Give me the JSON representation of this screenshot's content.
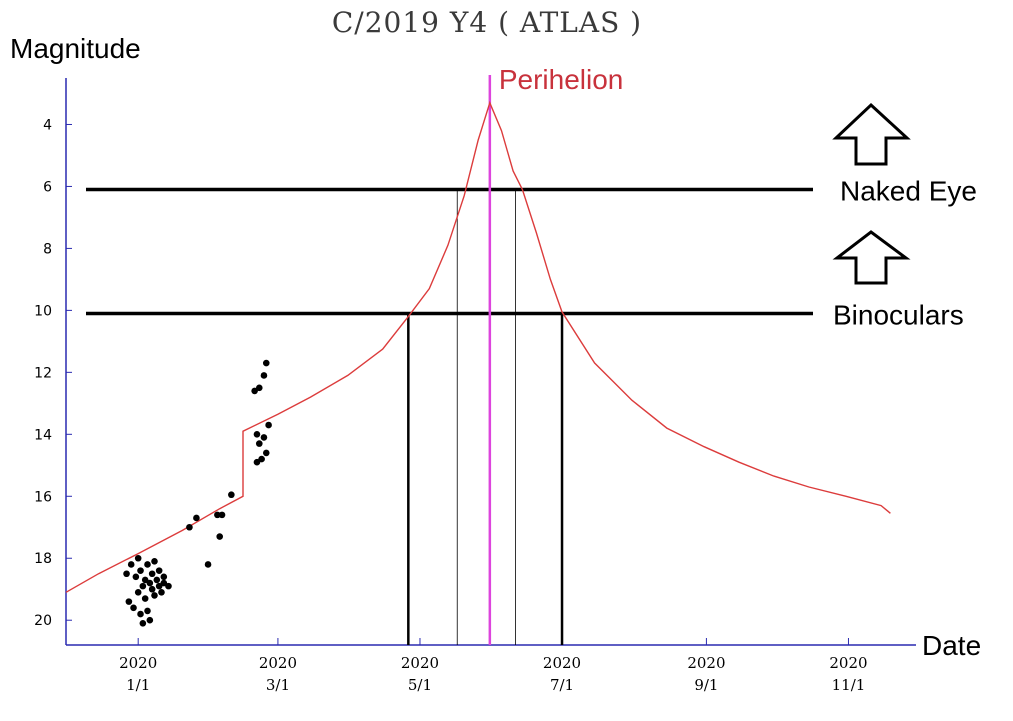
{
  "chart_data": {
    "type": "scatter",
    "title": "C/2019 Y4 ( ATLAS )",
    "ylabel": "Magnitude",
    "xlabel": "Date",
    "y_axis_inverted": true,
    "ylim": [
      20.8,
      2.5
    ],
    "xlim": [
      "2019-12-01",
      "2020-11-30"
    ],
    "y_ticks": [
      4,
      6,
      8,
      10,
      12,
      14,
      16,
      18,
      20
    ],
    "x_ticks": [
      {
        "date": "2020-01-01",
        "year": "2020",
        "label": "1/1"
      },
      {
        "date": "2020-03-01",
        "year": "2020",
        "label": "3/1"
      },
      {
        "date": "2020-05-01",
        "year": "2020",
        "label": "5/1"
      },
      {
        "date": "2020-07-01",
        "year": "2020",
        "label": "7/1"
      },
      {
        "date": "2020-09-01",
        "year": "2020",
        "label": "9/1"
      },
      {
        "date": "2020-11-01",
        "year": "2020",
        "label": "11/1"
      }
    ],
    "colors": {
      "prediction": "#dc3c3c",
      "perihelion": "#dd44dd",
      "observations": "#000000"
    },
    "prediction_curve": [
      [
        "2019-12-01",
        19.1
      ],
      [
        "2019-12-15",
        18.5
      ],
      [
        "2020-01-01",
        17.85
      ],
      [
        "2020-01-20",
        17.1
      ],
      [
        "2020-02-05",
        16.4
      ],
      [
        "2020-02-15",
        16.0
      ],
      [
        "2020-02-15",
        13.9
      ],
      [
        "2020-03-01",
        13.35
      ],
      [
        "2020-03-15",
        12.8
      ],
      [
        "2020-03-31",
        12.1
      ],
      [
        "2020-04-15",
        11.25
      ],
      [
        "2020-04-26",
        10.2
      ],
      [
        "2020-05-05",
        9.3
      ],
      [
        "2020-05-13",
        7.9
      ],
      [
        "2020-05-20",
        6.3
      ],
      [
        "2020-05-26",
        4.5
      ],
      [
        "2020-05-31",
        3.3
      ],
      [
        "2020-06-05",
        4.2
      ],
      [
        "2020-06-10",
        5.5
      ],
      [
        "2020-06-14",
        6.1
      ],
      [
        "2020-06-20",
        7.5
      ],
      [
        "2020-06-26",
        9.0
      ],
      [
        "2020-07-01",
        10.05
      ],
      [
        "2020-07-15",
        11.7
      ],
      [
        "2020-07-31",
        12.9
      ],
      [
        "2020-08-15",
        13.8
      ],
      [
        "2020-08-31",
        14.4
      ],
      [
        "2020-09-15",
        14.9
      ],
      [
        "2020-09-30",
        15.35
      ],
      [
        "2020-10-15",
        15.7
      ],
      [
        "2020-10-31",
        16.0
      ],
      [
        "2020-11-15",
        16.3
      ],
      [
        "2020-11-19",
        16.55
      ]
    ],
    "observations": [
      [
        "2019-12-27",
        18.5
      ],
      [
        "2019-12-28",
        19.4
      ],
      [
        "2019-12-29",
        18.2
      ],
      [
        "2019-12-30",
        19.6
      ],
      [
        "2019-12-31",
        18.6
      ],
      [
        "2020-01-01",
        18.0
      ],
      [
        "2020-01-01",
        19.1
      ],
      [
        "2020-01-02",
        18.4
      ],
      [
        "2020-01-02",
        19.8
      ],
      [
        "2020-01-03",
        18.9
      ],
      [
        "2020-01-03",
        20.1
      ],
      [
        "2020-01-04",
        18.7
      ],
      [
        "2020-01-04",
        19.3
      ],
      [
        "2020-01-05",
        18.2
      ],
      [
        "2020-01-05",
        19.7
      ],
      [
        "2020-01-06",
        18.8
      ],
      [
        "2020-01-06",
        20.0
      ],
      [
        "2020-01-07",
        18.5
      ],
      [
        "2020-01-07",
        19.0
      ],
      [
        "2020-01-08",
        18.1
      ],
      [
        "2020-01-08",
        19.2
      ],
      [
        "2020-01-09",
        18.7
      ],
      [
        "2020-01-10",
        18.9
      ],
      [
        "2020-01-10",
        18.4
      ],
      [
        "2020-01-11",
        19.1
      ],
      [
        "2020-01-12",
        18.6
      ],
      [
        "2020-01-12",
        18.8
      ],
      [
        "2020-01-14",
        18.9
      ],
      [
        "2020-01-23",
        17.0
      ],
      [
        "2020-01-26",
        16.7
      ],
      [
        "2020-01-31",
        18.2
      ],
      [
        "2020-02-04",
        16.6
      ],
      [
        "2020-02-05",
        17.3
      ],
      [
        "2020-02-06",
        16.6
      ],
      [
        "2020-02-10",
        15.95
      ],
      [
        "2020-02-20",
        12.6
      ],
      [
        "2020-02-21",
        14.0
      ],
      [
        "2020-02-21",
        14.9
      ],
      [
        "2020-02-22",
        12.5
      ],
      [
        "2020-02-22",
        14.3
      ],
      [
        "2020-02-23",
        14.8
      ],
      [
        "2020-02-24",
        12.1
      ],
      [
        "2020-02-24",
        14.1
      ],
      [
        "2020-02-25",
        14.6
      ],
      [
        "2020-02-25",
        11.7
      ],
      [
        "2020-02-26",
        13.7
      ]
    ],
    "annotations": [
      {
        "type": "threshold",
        "label": "Naked Eye",
        "y": 6.1
      },
      {
        "type": "threshold",
        "label": "Binoculars",
        "y": 10.1
      },
      {
        "type": "vline",
        "label": "Perihelion",
        "date": "2020-05-31"
      },
      {
        "type": "vline_bold",
        "date": "2020-04-26",
        "from_y": 10.1
      },
      {
        "type": "vline_bold",
        "date": "2020-07-01",
        "from_y": 10.1
      },
      {
        "type": "vline_thin",
        "date": "2020-05-17",
        "from_y": 6.1
      },
      {
        "type": "vline_thin",
        "date": "2020-06-11",
        "from_y": 6.1
      }
    ]
  }
}
